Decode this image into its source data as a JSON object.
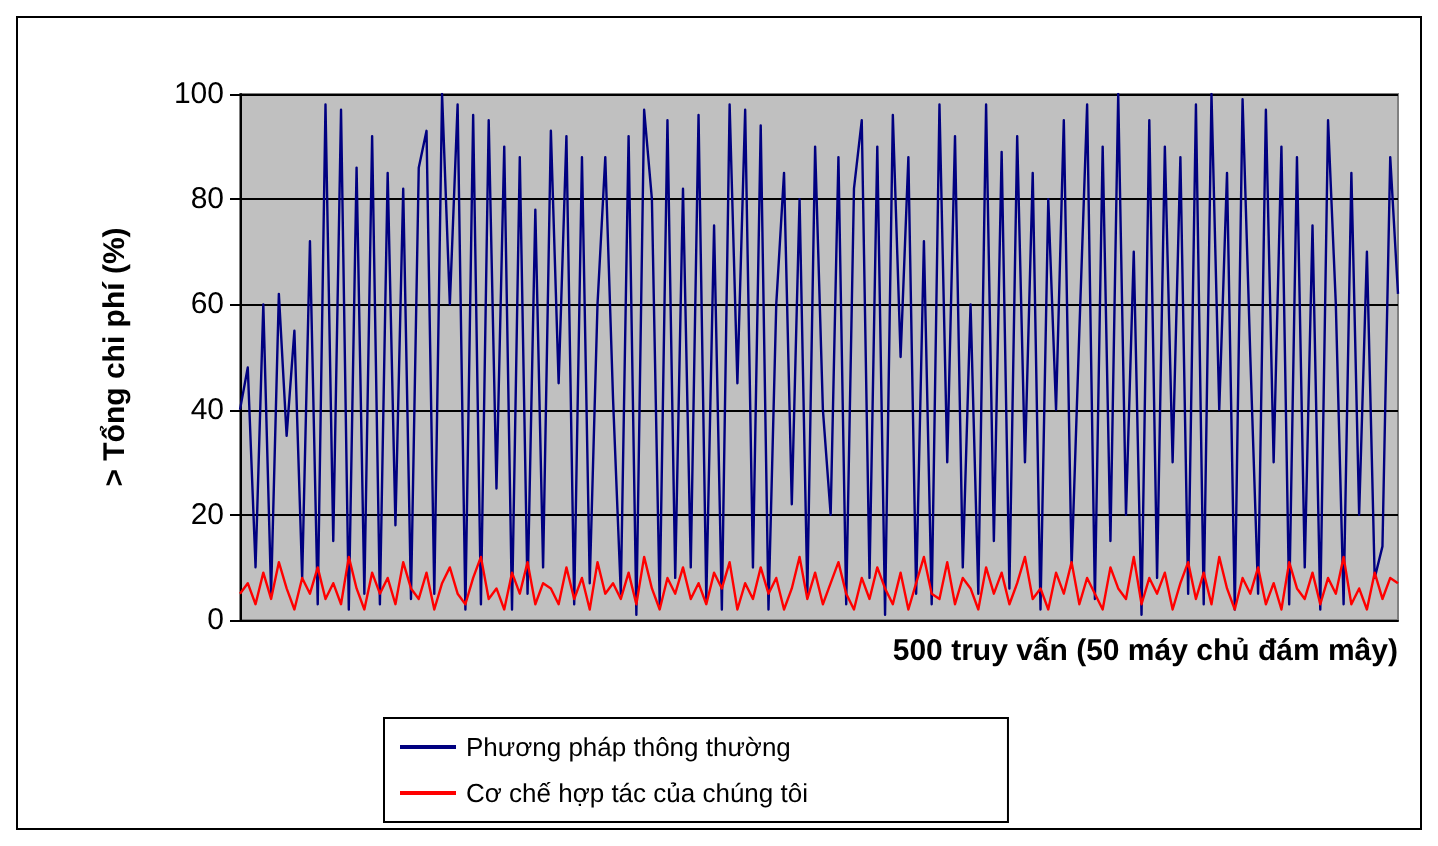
{
  "chart_data": {
    "type": "line",
    "xlabel": "500 truy vấn (50 máy chủ đám mây)",
    "ylabel": "> Tổng chi phí (%)",
    "categories": [
      null,
      null,
      null,
      null,
      null,
      null,
      null,
      null,
      null,
      null,
      null,
      null,
      null,
      null,
      null,
      null,
      null,
      null,
      null,
      null,
      null,
      null,
      null,
      null,
      null,
      null,
      null,
      null,
      null,
      null,
      null,
      null,
      null,
      null,
      null,
      null,
      null,
      null,
      null,
      null,
      null,
      null,
      null,
      null,
      null,
      null,
      null,
      null,
      null,
      null,
      null,
      null,
      null,
      null,
      null,
      null,
      null,
      null,
      null,
      null,
      null,
      null,
      null,
      null,
      null,
      null,
      null,
      null,
      null,
      null,
      null,
      null,
      null,
      null,
      null,
      null,
      null,
      null,
      null,
      null,
      null,
      null,
      null,
      null,
      null,
      null,
      null,
      null,
      null,
      null,
      null,
      null,
      null,
      null,
      null,
      null,
      null,
      null,
      null,
      null,
      null,
      null,
      null,
      null,
      null,
      null,
      null,
      null,
      null,
      null,
      null,
      null,
      null,
      null,
      null,
      null,
      null,
      null,
      null,
      null,
      null,
      null,
      null,
      null,
      null,
      null,
      null,
      null,
      null,
      null,
      null,
      null,
      null,
      null,
      null,
      null,
      null,
      null,
      null,
      null,
      null,
      null,
      null,
      null,
      null,
      null,
      null,
      null,
      null,
      null
    ],
    "series": [
      {
        "name": "Phương pháp thông thường",
        "color": "#000080",
        "values": [
          40,
          48,
          10,
          60,
          5,
          62,
          35,
          55,
          8,
          72,
          3,
          98,
          15,
          97,
          2,
          86,
          5,
          92,
          3,
          85,
          18,
          82,
          4,
          86,
          93,
          5,
          100,
          60,
          98,
          2,
          96,
          3,
          95,
          25,
          90,
          2,
          88,
          5,
          78,
          10,
          93,
          45,
          92,
          3,
          88,
          7,
          60,
          88,
          42,
          5,
          92,
          1,
          97,
          80,
          3,
          95,
          8,
          82,
          10,
          96,
          4,
          75,
          2,
          98,
          45,
          97,
          10,
          94,
          2,
          60,
          85,
          22,
          80,
          5,
          90,
          40,
          20,
          88,
          3,
          82,
          95,
          8,
          90,
          1,
          96,
          50,
          88,
          5,
          72,
          3,
          98,
          30,
          92,
          10,
          60,
          5,
          98,
          15,
          89,
          6,
          92,
          30,
          85,
          2,
          80,
          40,
          95,
          10,
          55,
          98,
          4,
          90,
          15,
          100,
          20,
          70,
          1,
          95,
          8,
          90,
          30,
          88,
          5,
          98,
          3,
          100,
          40,
          85,
          2,
          99,
          50,
          5,
          97,
          30,
          90,
          3,
          88,
          10,
          75,
          2,
          95,
          60,
          3,
          85,
          20,
          70,
          8,
          14,
          88,
          62
        ]
      },
      {
        "name": "Cơ chế hợp tác của chúng tôi",
        "color": "#ff0000",
        "values": [
          5,
          7,
          3,
          9,
          4,
          11,
          6,
          2,
          8,
          5,
          10,
          4,
          7,
          3,
          12,
          6,
          2,
          9,
          5,
          8,
          3,
          11,
          6,
          4,
          9,
          2,
          7,
          10,
          5,
          3,
          8,
          12,
          4,
          6,
          2,
          9,
          5,
          11,
          3,
          7,
          6,
          3,
          10,
          4,
          8,
          2,
          11,
          5,
          7,
          4,
          9,
          3,
          12,
          6,
          2,
          8,
          5,
          10,
          4,
          7,
          3,
          9,
          6,
          11,
          2,
          7,
          4,
          10,
          5,
          8,
          2,
          6,
          12,
          4,
          9,
          3,
          7,
          11,
          5,
          2,
          8,
          4,
          10,
          6,
          3,
          9,
          2,
          7,
          12,
          5,
          4,
          11,
          3,
          8,
          6,
          2,
          10,
          5,
          9,
          3,
          7,
          12,
          4,
          6,
          2,
          9,
          5,
          11,
          3,
          8,
          5,
          2,
          10,
          6,
          4,
          12,
          3,
          8,
          5,
          9,
          2,
          7,
          11,
          4,
          9,
          3,
          12,
          6,
          2,
          8,
          5,
          10,
          3,
          7,
          2,
          11,
          6,
          4,
          9,
          3,
          8,
          5,
          12,
          3,
          6,
          2,
          9,
          4,
          8,
          7
        ]
      }
    ],
    "ylim": [
      0,
      100
    ],
    "yticks": [
      0,
      20,
      40,
      60,
      80,
      100
    ],
    "grid": "y",
    "legend": "bottom",
    "marker": "none",
    "line_style": "solid"
  }
}
